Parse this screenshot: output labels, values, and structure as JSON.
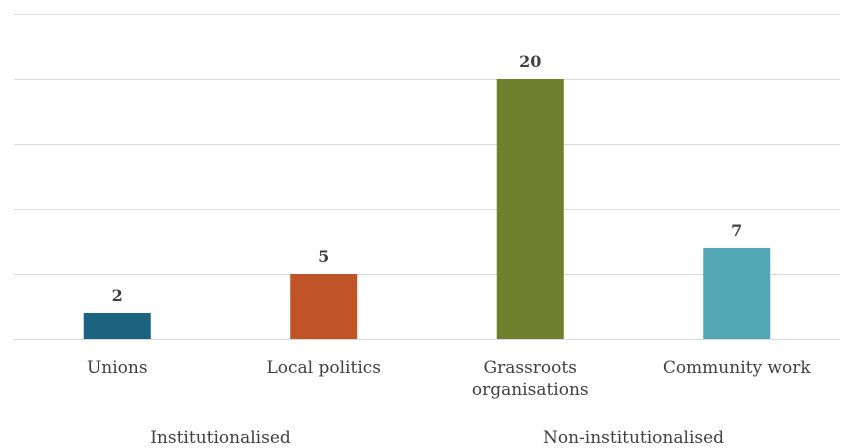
{
  "chart_data": {
    "type": "bar",
    "title": "",
    "xlabel": "",
    "ylabel": "",
    "categories": [
      [
        "Unions"
      ],
      [
        "Local politics"
      ],
      [
        "Grassroots",
        "organisations"
      ],
      [
        "Community work"
      ]
    ],
    "values": [
      2,
      5,
      20,
      7
    ],
    "colors": [
      "#1b6480",
      "#bf5427",
      "#6f7f2c",
      "#54a8b5"
    ],
    "groups": [
      {
        "label": "Institutionalised",
        "span": [
          0,
          1
        ]
      },
      {
        "label": "Non-institutionalised",
        "span": [
          2,
          3
        ]
      }
    ],
    "ylim": [
      0,
      25
    ],
    "ytick_step": 5,
    "grid": true,
    "show_y_axis_labels": false,
    "data_labels": true
  }
}
